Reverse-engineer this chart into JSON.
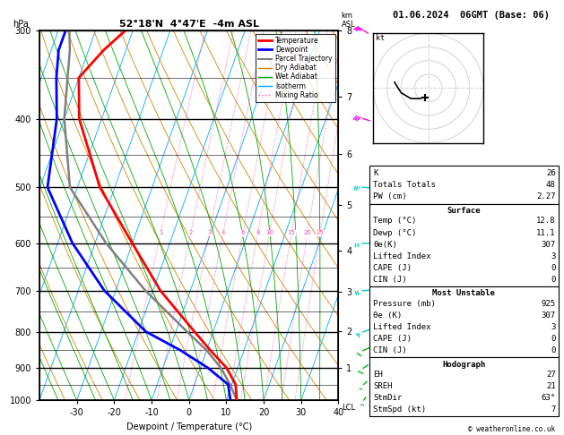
{
  "title_left": "52°18'N  4°47'E  -4m ASL",
  "title_right": "01.06.2024  06GMT (Base: 06)",
  "xlabel": "Dewpoint / Temperature (°C)",
  "isotherm_color": "#00aaff",
  "dry_adiabat_color": "#cc8800",
  "wet_adiabat_color": "#00aa00",
  "mixing_ratio_color": "#ff44aa",
  "pressure_levels": [
    300,
    350,
    400,
    450,
    500,
    550,
    600,
    650,
    700,
    750,
    800,
    850,
    900,
    950,
    1000
  ],
  "pressure_major": [
    300,
    400,
    500,
    600,
    700,
    800,
    900,
    1000
  ],
  "temp_ticks": [
    -30,
    -20,
    -10,
    0,
    10,
    20,
    30,
    40
  ],
  "km_ticks": [
    1,
    2,
    3,
    4,
    5,
    6,
    7,
    8
  ],
  "km_pressures": [
    897,
    795,
    698,
    608,
    522,
    441,
    364,
    292
  ],
  "mixing_ratios": [
    1,
    2,
    3,
    4,
    6,
    8,
    10,
    15,
    20,
    25
  ],
  "temp_profile_T": [
    12.8,
    11.0,
    7.0,
    1.0,
    -5.0,
    -18.0,
    -30.0,
    -44.0,
    -56.0,
    -60.0,
    -56.0,
    -52.0
  ],
  "temp_profile_P": [
    1000,
    950,
    900,
    850,
    800,
    700,
    600,
    500,
    400,
    350,
    320,
    300
  ],
  "dewp_profile_T": [
    11.1,
    9.0,
    2.0,
    -7.0,
    -18.0,
    -33.0,
    -46.0,
    -58.0,
    -62.0,
    -66.0,
    -68.0,
    -68.0
  ],
  "dewp_profile_P": [
    1000,
    950,
    900,
    850,
    800,
    700,
    600,
    500,
    400,
    350,
    320,
    300
  ],
  "parcel_T": [
    12.8,
    9.5,
    5.5,
    0.0,
    -7.0,
    -22.0,
    -37.0,
    -52.0,
    -60.0,
    -63.0,
    -65.0,
    -67.0
  ],
  "parcel_P": [
    1000,
    950,
    900,
    850,
    800,
    700,
    600,
    500,
    400,
    350,
    320,
    300
  ],
  "wind_pressures": [
    1000,
    950,
    900,
    850,
    800,
    700,
    600,
    500,
    400,
    300
  ],
  "wind_speeds": [
    7,
    8,
    10,
    12,
    15,
    20,
    20,
    25,
    30,
    35
  ],
  "wind_dirs": [
    200,
    210,
    220,
    230,
    240,
    260,
    270,
    280,
    300,
    320
  ],
  "wind_colors": [
    "#00bb00",
    "#00bb00",
    "#00bb00",
    "#00bb00",
    "#00cccc",
    "#00cccc",
    "#00cccc",
    "#00cccc",
    "#ff00ff",
    "#ff00ff"
  ],
  "stats_rows1": [
    [
      "K",
      "26"
    ],
    [
      "Totals Totals",
      "48"
    ],
    [
      "PW (cm)",
      "2.27"
    ]
  ],
  "stats_surf_title": "Surface",
  "stats_surf": [
    [
      "Temp (°C)",
      "12.8"
    ],
    [
      "Dewp (°C)",
      "11.1"
    ],
    [
      "θe(K)",
      "307"
    ],
    [
      "Lifted Index",
      "3"
    ],
    [
      "CAPE (J)",
      "0"
    ],
    [
      "CIN (J)",
      "0"
    ]
  ],
  "stats_mu_title": "Most Unstable",
  "stats_mu": [
    [
      "Pressure (mb)",
      "925"
    ],
    [
      "θe (K)",
      "307"
    ],
    [
      "Lifted Index",
      "3"
    ],
    [
      "CAPE (J)",
      "0"
    ],
    [
      "CIN (J)",
      "0"
    ]
  ],
  "stats_hodo_title": "Hodograph",
  "stats_hodo": [
    [
      "EH",
      "27"
    ],
    [
      "SREH",
      "21"
    ],
    [
      "StmDir",
      "63°"
    ],
    [
      "StmSpd (kt)",
      "7"
    ]
  ],
  "copyright": "© weatheronline.co.uk"
}
